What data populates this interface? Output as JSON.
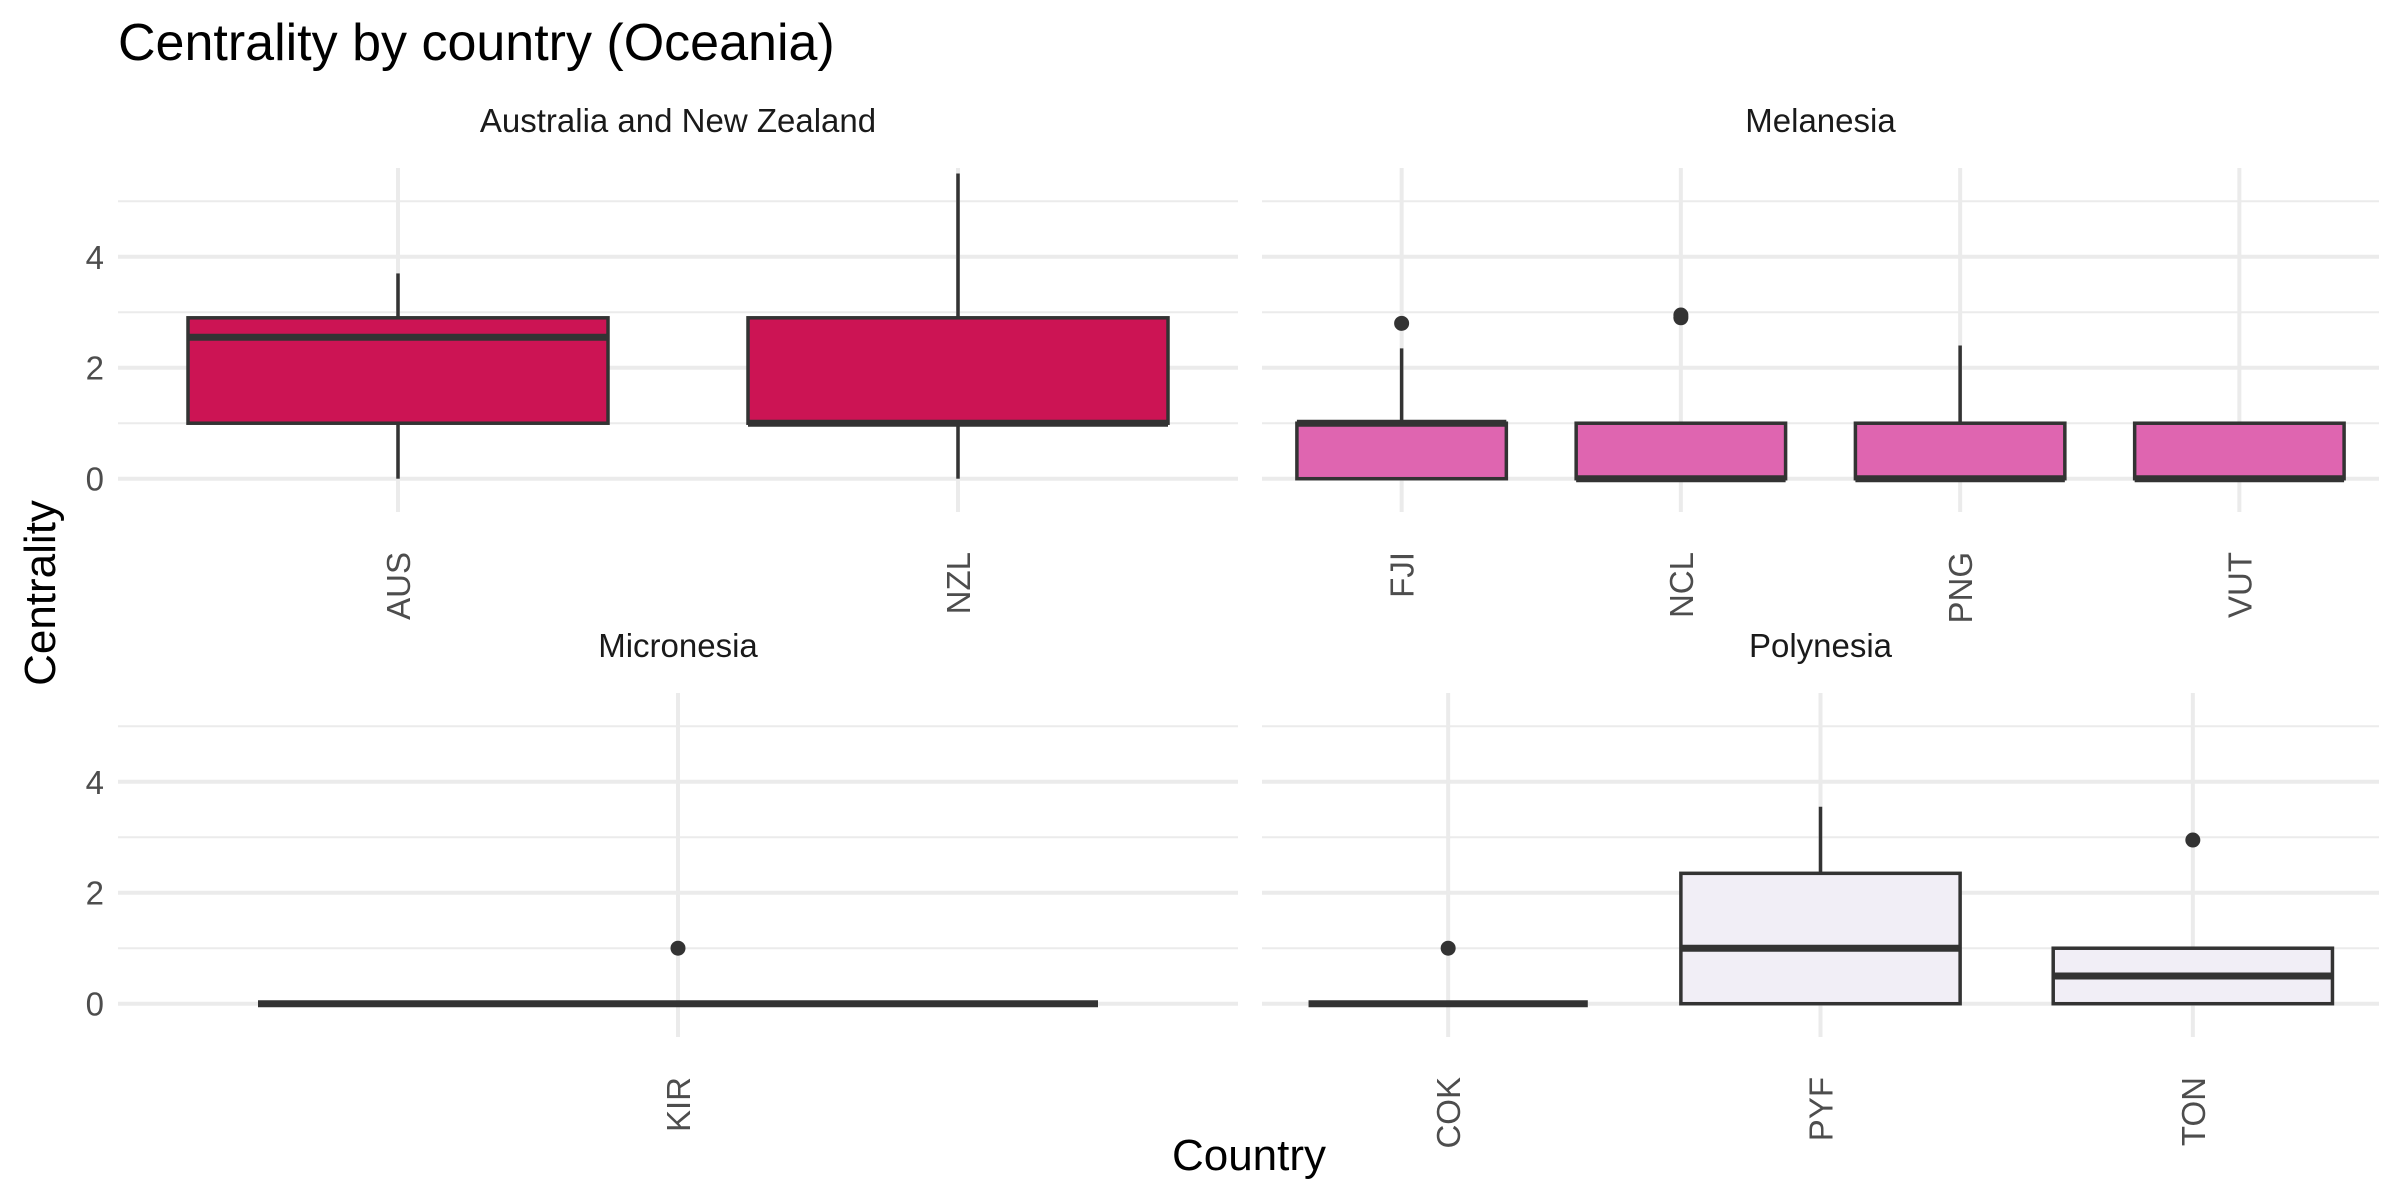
{
  "chart_data": {
    "type": "boxplot",
    "title": "Centrality by country (Oceania)",
    "xlabel": "Country",
    "ylabel": "Centrality",
    "ylim": [
      -0.6,
      5.6
    ],
    "yticks": [
      0,
      2,
      4
    ],
    "grid": true,
    "legend": "none",
    "panels": [
      {
        "name": "Australia and New Zealand",
        "fill": "#cc1454",
        "boxes": [
          {
            "category": "AUS",
            "min": 0,
            "q1": 1,
            "median": 2.55,
            "q3": 2.9,
            "max": 3.7,
            "outliers": []
          },
          {
            "category": "NZL",
            "min": 0,
            "q1": 1,
            "median": 1.0,
            "q3": 2.9,
            "max": 5.5,
            "outliers": []
          }
        ]
      },
      {
        "name": "Melanesia",
        "fill": "#df65b0",
        "boxes": [
          {
            "category": "FJI",
            "min": 0,
            "q1": 0,
            "median": 1.0,
            "q3": 1.0,
            "max": 2.35,
            "outliers": [
              2.8
            ]
          },
          {
            "category": "NCL",
            "min": 0,
            "q1": 0,
            "median": 0,
            "q3": 1.0,
            "max": 1.0,
            "outliers": [
              2.9,
              2.95
            ]
          },
          {
            "category": "PNG",
            "min": 0,
            "q1": 0,
            "median": 0,
            "q3": 1.0,
            "max": 2.4,
            "outliers": []
          },
          {
            "category": "VUT",
            "min": 0,
            "q1": 0,
            "median": 0,
            "q3": 1.0,
            "max": 1.0,
            "outliers": []
          }
        ]
      },
      {
        "name": "Micronesia",
        "fill": "#f1eef6",
        "boxes": [
          {
            "category": "KIR",
            "min": 0,
            "q1": 0,
            "median": 0,
            "q3": 0,
            "max": 0,
            "outliers": [
              1.0
            ]
          }
        ]
      },
      {
        "name": "Polynesia",
        "fill": "#f1eef6",
        "boxes": [
          {
            "category": "COK",
            "min": 0,
            "q1": 0,
            "median": 0,
            "q3": 0,
            "max": 0,
            "outliers": [
              1.0
            ]
          },
          {
            "category": "PYF",
            "min": 0,
            "q1": 0,
            "median": 1.0,
            "q3": 2.35,
            "max": 3.55,
            "outliers": []
          },
          {
            "category": "TON",
            "min": 0,
            "q1": 0,
            "median": 0.5,
            "q3": 1.0,
            "max": 1.0,
            "outliers": [
              2.95
            ]
          }
        ]
      }
    ]
  },
  "colors": {
    "grid": "#ebebeb",
    "box_stroke": "#333333",
    "tick_text": "#4d4d4d"
  }
}
